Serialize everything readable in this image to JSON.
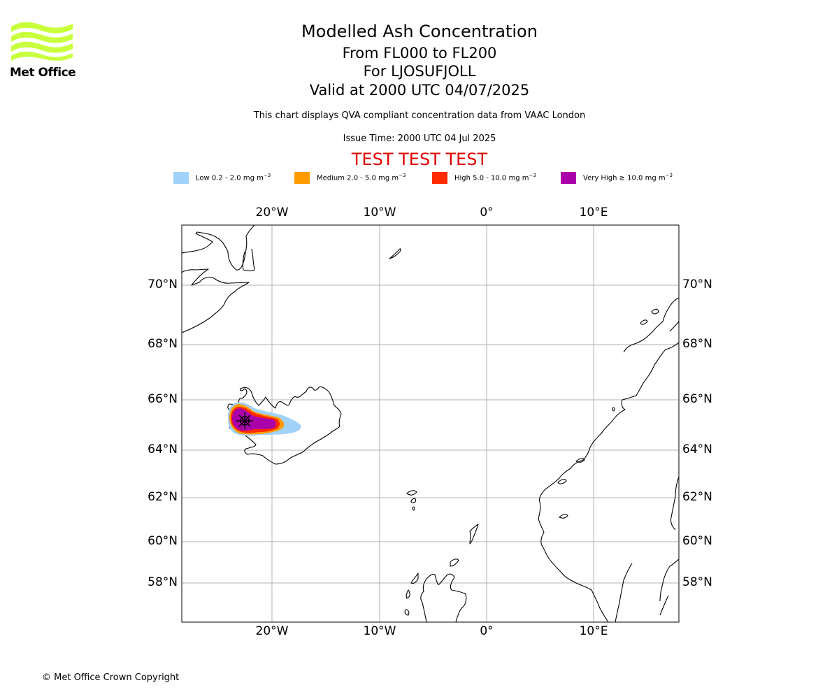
{
  "logo": {
    "text": "Met Office",
    "color": "#c8ff3c"
  },
  "header": {
    "title": "Modelled Ash Concentration",
    "levels": "From FL000 to FL200",
    "volcano": "For LJOSUFJOLL",
    "valid": "Valid at 2000 UTC 04/07/2025",
    "subtitle": "This chart displays QVA compliant concentration data from VAAC London",
    "issue_time": "Issue Time: 2000 UTC 04 Jul 2025",
    "test_banner": "TEST TEST TEST"
  },
  "legend": [
    {
      "label": "Low 0.2 - 2.0 mg m",
      "exp": "−3",
      "color": "#a0d2fa"
    },
    {
      "label": "Medium 2.0 - 5.0 mg m",
      "exp": "−3",
      "color": "#ff9a00"
    },
    {
      "label": "High 5.0 - 10.0 mg m",
      "exp": "−3",
      "color": "#ff2a00"
    },
    {
      "label": "Very High  ≥  10.0 mg m",
      "exp": "−3",
      "color": "#aa00aa"
    }
  ],
  "map": {
    "lon_ticks": [
      "20°W",
      "10°W",
      "0°",
      "10°E"
    ],
    "lat_ticks": [
      "70°N",
      "68°N",
      "66°N",
      "64°N",
      "62°N",
      "60°N",
      "58°N"
    ],
    "grid": true
  },
  "footer": {
    "copyright": "© Met Office Crown Copyright"
  }
}
